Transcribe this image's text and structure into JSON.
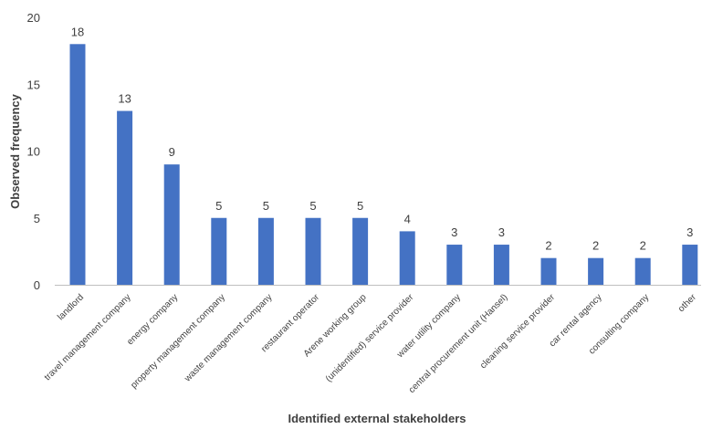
{
  "chart_data": {
    "type": "bar",
    "title": "",
    "xlabel": "Identified external stakeholders",
    "ylabel": "Observed frequency",
    "ylim": [
      0,
      20
    ],
    "yticks": [
      0,
      5,
      10,
      15,
      20
    ],
    "grid": false,
    "legend": "none",
    "bar_color": "#4472C4",
    "categories": [
      "landlord",
      "travel management company",
      "energy company",
      "property management company",
      "waste management company",
      "restaurant operator",
      "Arene working group",
      "(unidentified) service provider",
      "water utility company",
      "central procurement unit (Hansel)",
      "cleaning service provider",
      "car rental agency",
      "consulting company",
      "other"
    ],
    "values": [
      18,
      13,
      9,
      5,
      5,
      5,
      5,
      4,
      3,
      3,
      2,
      2,
      2,
      3
    ]
  }
}
